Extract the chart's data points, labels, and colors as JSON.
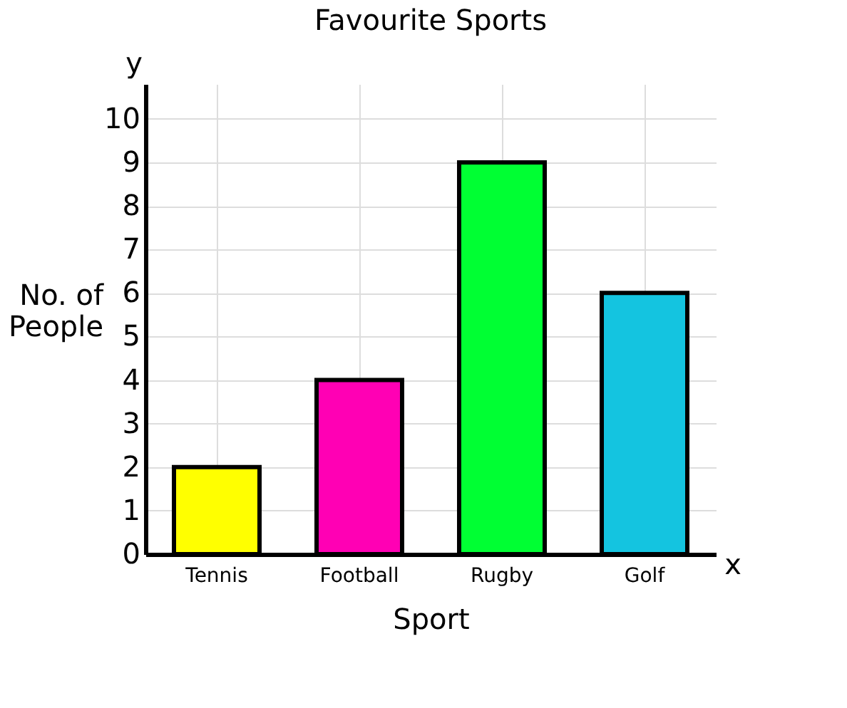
{
  "chart_data": {
    "type": "bar",
    "title": "Favourite Sports",
    "xlabel": "Sport",
    "ylabel": "No. of People",
    "categories": [
      "Tennis",
      "Football",
      "Rugby",
      "Golf"
    ],
    "values": [
      2,
      4,
      9,
      6
    ],
    "colors": [
      "#ffff00",
      "#ff00b4",
      "#00ff33",
      "#14c4e0"
    ],
    "ylim": [
      0,
      10.8
    ],
    "yticks": [
      0,
      1,
      2,
      3,
      4,
      5,
      6,
      7,
      8,
      9,
      10
    ],
    "grid": true,
    "annotations": [
      "y",
      "x"
    ]
  }
}
